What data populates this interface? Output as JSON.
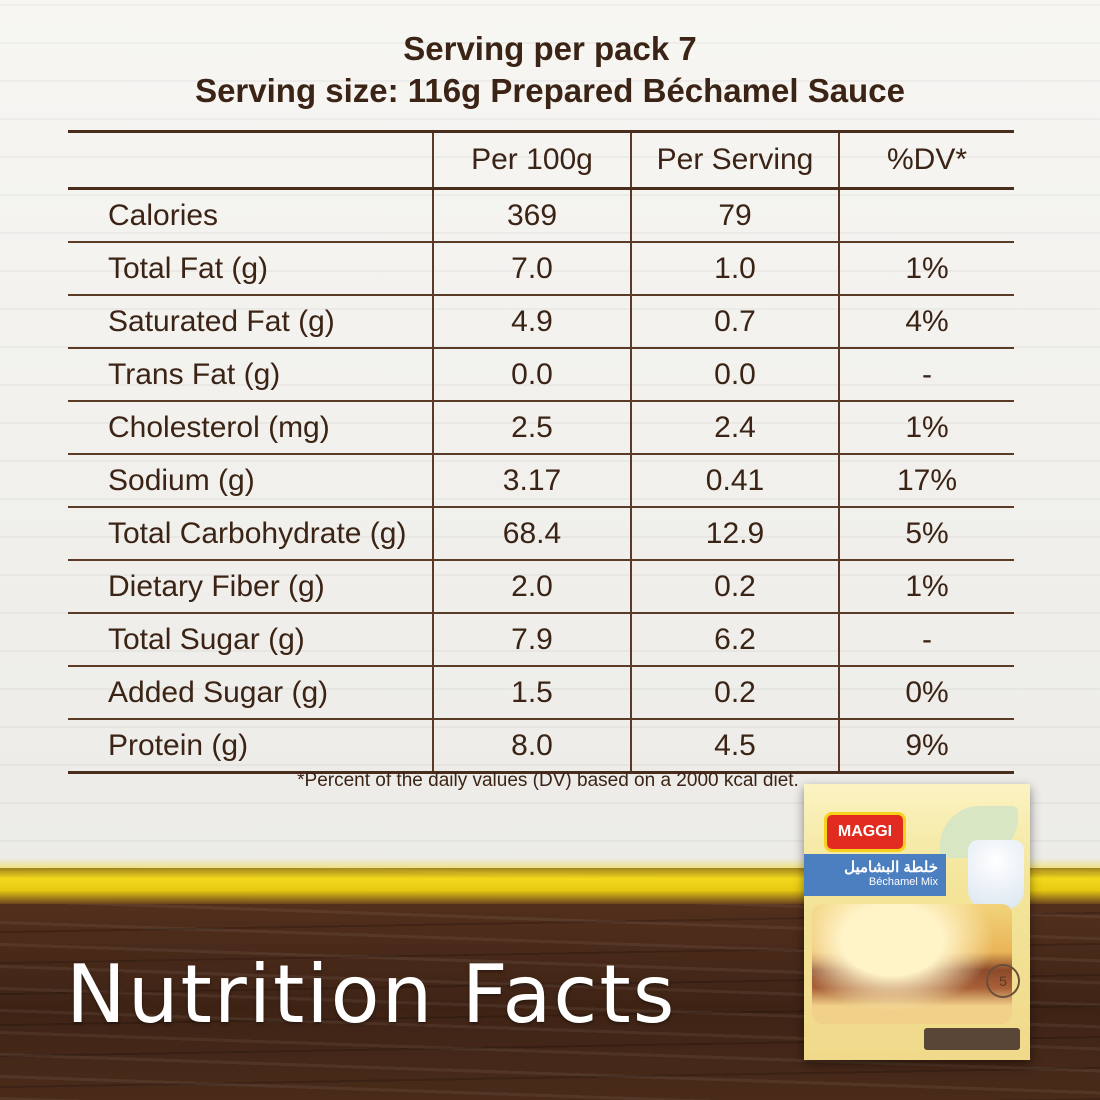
{
  "header": {
    "line1": "Serving per pack 7",
    "line2": "Serving size: 116g Prepared Béchamel Sauce"
  },
  "table": {
    "columns": [
      "",
      "Per 100g",
      "Per Serving",
      "%DV*"
    ],
    "rows": [
      {
        "label": "Calories",
        "per100g": "369",
        "perServing": "79",
        "dv": ""
      },
      {
        "label": "Total Fat (g)",
        "per100g": "7.0",
        "perServing": "1.0",
        "dv": "1%"
      },
      {
        "label": "Saturated Fat (g)",
        "per100g": "4.9",
        "perServing": "0.7",
        "dv": "4%"
      },
      {
        "label": "Trans Fat (g)",
        "per100g": "0.0",
        "perServing": "0.0",
        "dv": "-"
      },
      {
        "label": "Cholesterol (mg)",
        "per100g": "2.5",
        "perServing": "2.4",
        "dv": "1%"
      },
      {
        "label": "Sodium (g)",
        "per100g": "3.17",
        "perServing": "0.41",
        "dv": "17%"
      },
      {
        "label": "Total Carbohydrate (g)",
        "per100g": "68.4",
        "perServing": "12.9",
        "dv": "5%"
      },
      {
        "label": "Dietary Fiber (g)",
        "per100g": "2.0",
        "perServing": "0.2",
        "dv": "1%"
      },
      {
        "label": "Total Sugar (g)",
        "per100g": "7.9",
        "perServing": "6.2",
        "dv": "-"
      },
      {
        "label": "Added Sugar (g)",
        "per100g": "1.5",
        "perServing": "0.2",
        "dv": "0%"
      },
      {
        "label": "Protein (g)",
        "per100g": "8.0",
        "perServing": "4.5",
        "dv": "9%"
      }
    ]
  },
  "footnote": "*Percent of the daily values (DV) based on a 2000 kcal diet.",
  "bigTitle": "Nutrition Facts",
  "pack": {
    "brand": "MAGGI",
    "name_ar": "خلطة البشاميل",
    "name_en": "Béchamel Mix",
    "timer": "5"
  },
  "colors": {
    "text": "#3b2415",
    "yellow": "#f2d91c",
    "wood_dark": "#4a2b1a"
  }
}
